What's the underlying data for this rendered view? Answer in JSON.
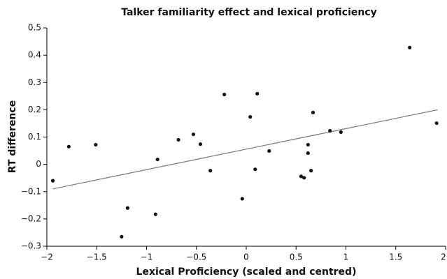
{
  "chart_data": {
    "type": "scatter",
    "title": "Talker familiarity effect and lexical proficiency",
    "xlabel": "Lexical Proficiency (scaled and centred)",
    "ylabel": "RT difference",
    "color": "#111111",
    "x": [
      -1.94,
      -1.78,
      -1.51,
      -1.25,
      -1.19,
      -0.91,
      -0.89,
      -0.68,
      -0.53,
      -0.46,
      -0.36,
      -0.22,
      -0.04,
      0.04,
      0.09,
      0.11,
      0.23,
      0.55,
      0.58,
      0.62,
      0.62,
      0.65,
      0.67,
      0.84,
      0.95,
      1.64,
      1.91
    ],
    "values": [
      -0.06,
      0.065,
      0.072,
      -0.265,
      -0.16,
      -0.183,
      0.018,
      0.09,
      0.11,
      0.074,
      -0.023,
      0.256,
      -0.126,
      0.174,
      -0.018,
      0.259,
      0.049,
      -0.044,
      -0.049,
      0.072,
      0.041,
      -0.023,
      0.19,
      0.123,
      0.118,
      0.428,
      0.151
    ],
    "trend_line": {
      "x": [
        -1.94,
        1.92
      ],
      "y": [
        -0.09,
        0.2
      ],
      "color": "#808080"
    },
    "xlim": [
      -2,
      2
    ],
    "ylim": [
      -0.3,
      0.5
    ],
    "xticks": [
      {
        "value": -2,
        "label": "−2"
      },
      {
        "value": -1.5,
        "label": "−1.5"
      },
      {
        "value": -1,
        "label": "−1"
      },
      {
        "value": -0.5,
        "label": "−0.5"
      },
      0,
      0.5,
      1,
      1.5,
      2
    ],
    "yticks": [
      {
        "value": -0.3,
        "label": "−0.3"
      },
      {
        "value": -0.2,
        "label": "−0.2"
      },
      {
        "value": -0.1,
        "label": "−0.1"
      },
      0,
      0.1,
      0.2,
      0.3,
      0.4,
      0.5
    ]
  }
}
